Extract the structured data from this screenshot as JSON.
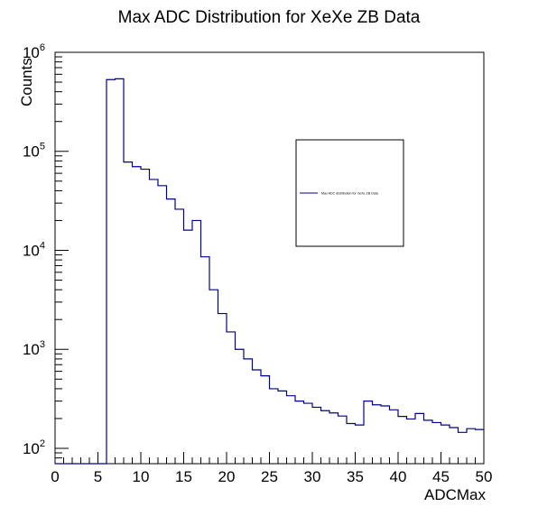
{
  "chart_data": {
    "type": "histogram",
    "title": "Max ADC Distribution for XeXe ZB Data",
    "xlabel": "ADCMax",
    "ylabel": "Counts",
    "xlim": [
      0,
      50
    ],
    "ylim": [
      70,
      1000000
    ],
    "yscale": "log",
    "grid": false,
    "legend_position": "center-right",
    "line_color": "#00008b",
    "x_ticks": [
      "0",
      "5",
      "10",
      "15",
      "20",
      "25",
      "30",
      "35",
      "40",
      "45",
      "50"
    ],
    "y_ticks": [
      {
        "base": "10",
        "exp": "2",
        "value": 100
      },
      {
        "base": "10",
        "exp": "3",
        "value": 1000
      },
      {
        "base": "10",
        "exp": "4",
        "value": 10000
      },
      {
        "base": "10",
        "exp": "5",
        "value": 100000
      },
      {
        "base": "10",
        "exp": "6",
        "value": 1000000
      }
    ],
    "series": [
      {
        "name": "Max ADC distribution for XeXe ZB Data",
        "bin_width": 1,
        "bin_edges_start": 0,
        "values": [
          0,
          0,
          0,
          0,
          0,
          0,
          530000,
          540000,
          78000,
          70000,
          66000,
          52000,
          45000,
          33000,
          26000,
          16000,
          20000,
          8600,
          4000,
          2300,
          1500,
          1000,
          800,
          620,
          540,
          400,
          380,
          340,
          300,
          285,
          260,
          240,
          228,
          212,
          178,
          172,
          300,
          275,
          268,
          245,
          210,
          198,
          225,
          192,
          182,
          172,
          162,
          145,
          158,
          155
        ]
      }
    ]
  }
}
